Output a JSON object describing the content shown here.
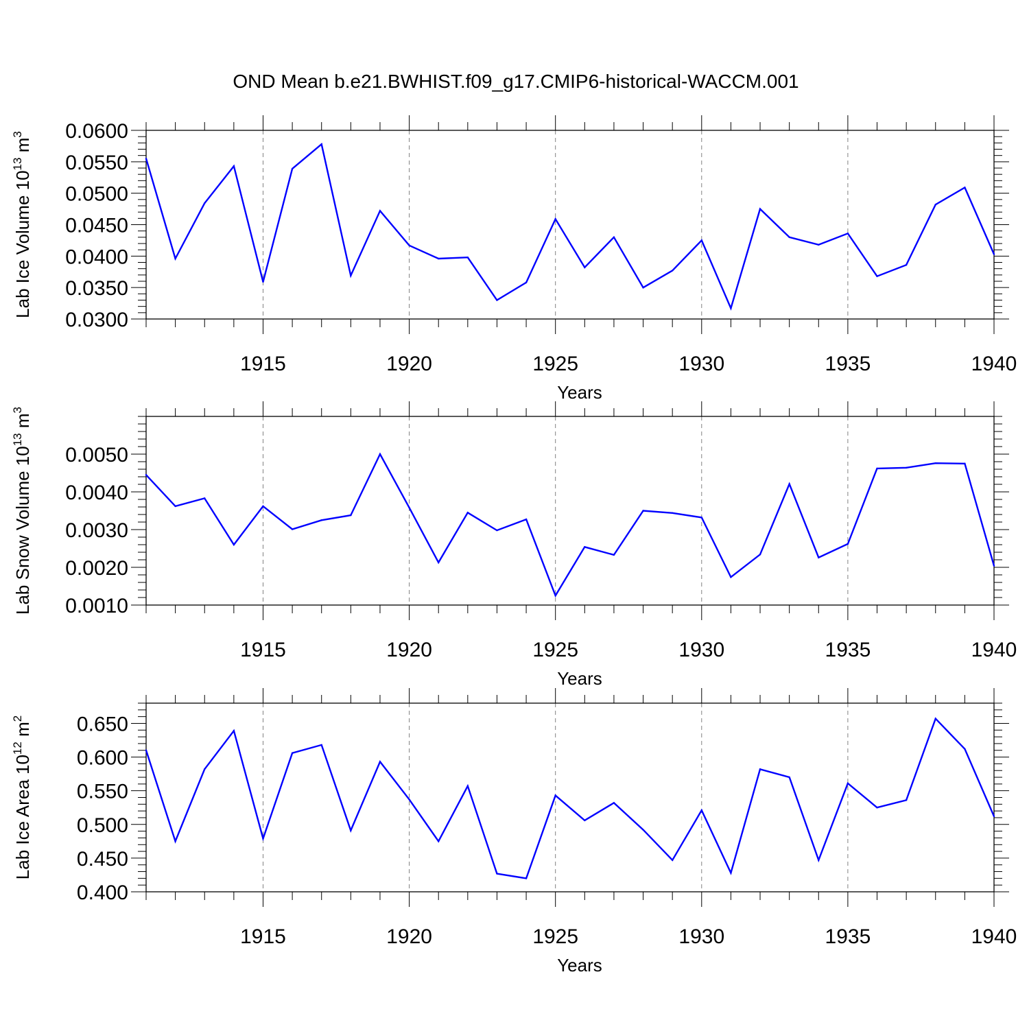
{
  "title": "OND Mean b.e21.BWHIST.f09_g17.CMIP6-historical-WACCM.001",
  "colors": {
    "series": "#0000ff",
    "axis": "#000000",
    "grid": "#808080"
  },
  "chart_data": [
    {
      "type": "line",
      "title": "OND Mean b.e21.BWHIST.f09_g17.CMIP6-historical-WACCM.001",
      "xlabel": "Years",
      "ylabel": {
        "text": "Lab Ice Volume 10",
        "exp": "13",
        "unit": " m",
        "unit_exp": "3"
      },
      "xlim": [
        1911,
        1940
      ],
      "ylim": [
        0.03,
        0.06
      ],
      "xticks": [
        1915,
        1920,
        1925,
        1930,
        1935,
        1940
      ],
      "xtick_labels": [
        "1915",
        "1920",
        "1925",
        "1930",
        "1935",
        "1940"
      ],
      "yticks": [
        0.03,
        0.035,
        0.04,
        0.045,
        0.05,
        0.055,
        0.06
      ],
      "ytick_labels": [
        "0.0300",
        "0.0350",
        "0.0400",
        "0.0450",
        "0.0500",
        "0.0550",
        "0.0600"
      ],
      "grid": "x dashed",
      "x": [
        1911,
        1912,
        1913,
        1914,
        1915,
        1916,
        1917,
        1918,
        1919,
        1920,
        1921,
        1922,
        1923,
        1924,
        1925,
        1926,
        1927,
        1928,
        1929,
        1930,
        1931,
        1932,
        1933,
        1934,
        1935,
        1936,
        1937,
        1938,
        1939,
        1940
      ],
      "series": [
        {
          "name": "Lab Ice Volume",
          "values": [
            0.0555,
            0.0396,
            0.0484,
            0.0543,
            0.0359,
            0.0539,
            0.0578,
            0.0369,
            0.0472,
            0.0417,
            0.0396,
            0.0398,
            0.033,
            0.0358,
            0.0459,
            0.0382,
            0.043,
            0.035,
            0.0377,
            0.0425,
            0.0317,
            0.0475,
            0.043,
            0.0418,
            0.0436,
            0.0368,
            0.0386,
            0.0482,
            0.0509,
            0.0403
          ]
        }
      ]
    },
    {
      "type": "line",
      "xlabel": "Years",
      "ylabel": {
        "text": "Lab Snow Volume 10",
        "exp": "13",
        "unit": " m",
        "unit_exp": "3"
      },
      "xlim": [
        1911,
        1940
      ],
      "ylim": [
        0.001,
        0.006
      ],
      "xticks": [
        1915,
        1920,
        1925,
        1930,
        1935,
        1940
      ],
      "xtick_labels": [
        "1915",
        "1920",
        "1925",
        "1930",
        "1935",
        "1940"
      ],
      "yticks": [
        0.001,
        0.002,
        0.003,
        0.004,
        0.005
      ],
      "ytick_labels": [
        "0.0010",
        "0.0020",
        "0.0030",
        "0.0040",
        "0.0050"
      ],
      "grid": "x dashed",
      "x": [
        1911,
        1912,
        1913,
        1914,
        1915,
        1916,
        1917,
        1918,
        1919,
        1920,
        1921,
        1922,
        1923,
        1924,
        1925,
        1926,
        1927,
        1928,
        1929,
        1930,
        1931,
        1932,
        1933,
        1934,
        1935,
        1936,
        1937,
        1938,
        1939,
        1940
      ],
      "series": [
        {
          "name": "Lab Snow Volume",
          "values": [
            0.00445,
            0.00362,
            0.00383,
            0.0026,
            0.00362,
            0.00301,
            0.00325,
            0.00338,
            0.005,
            0.00358,
            0.00213,
            0.00345,
            0.00298,
            0.00327,
            0.00125,
            0.00254,
            0.00233,
            0.0035,
            0.00344,
            0.00332,
            0.00174,
            0.00234,
            0.00421,
            0.00226,
            0.00262,
            0.00462,
            0.00464,
            0.00476,
            0.00475,
            0.00204
          ]
        }
      ]
    },
    {
      "type": "line",
      "xlabel": "Years",
      "ylabel": {
        "text": "Lab Ice Area 10",
        "exp": "12",
        "unit": " m",
        "unit_exp": "2"
      },
      "xlim": [
        1911,
        1940
      ],
      "ylim": [
        0.4,
        0.68
      ],
      "xticks": [
        1915,
        1920,
        1925,
        1930,
        1935,
        1940
      ],
      "xtick_labels": [
        "1915",
        "1920",
        "1925",
        "1930",
        "1935",
        "1940"
      ],
      "yticks": [
        0.4,
        0.45,
        0.5,
        0.55,
        0.6,
        0.65
      ],
      "ytick_labels": [
        "0.400",
        "0.450",
        "0.500",
        "0.550",
        "0.600",
        "0.650"
      ],
      "grid": "x dashed",
      "x": [
        1911,
        1912,
        1913,
        1914,
        1915,
        1916,
        1917,
        1918,
        1919,
        1920,
        1921,
        1922,
        1923,
        1924,
        1925,
        1926,
        1927,
        1928,
        1929,
        1930,
        1931,
        1932,
        1933,
        1934,
        1935,
        1936,
        1937,
        1938,
        1939,
        1940
      ],
      "series": [
        {
          "name": "Lab Ice Area",
          "values": [
            0.61,
            0.475,
            0.582,
            0.639,
            0.479,
            0.606,
            0.618,
            0.491,
            0.593,
            0.537,
            0.475,
            0.557,
            0.427,
            0.42,
            0.543,
            0.506,
            0.532,
            0.492,
            0.447,
            0.521,
            0.428,
            0.582,
            0.57,
            0.447,
            0.561,
            0.525,
            0.536,
            0.657,
            0.612,
            0.512
          ]
        }
      ]
    }
  ]
}
